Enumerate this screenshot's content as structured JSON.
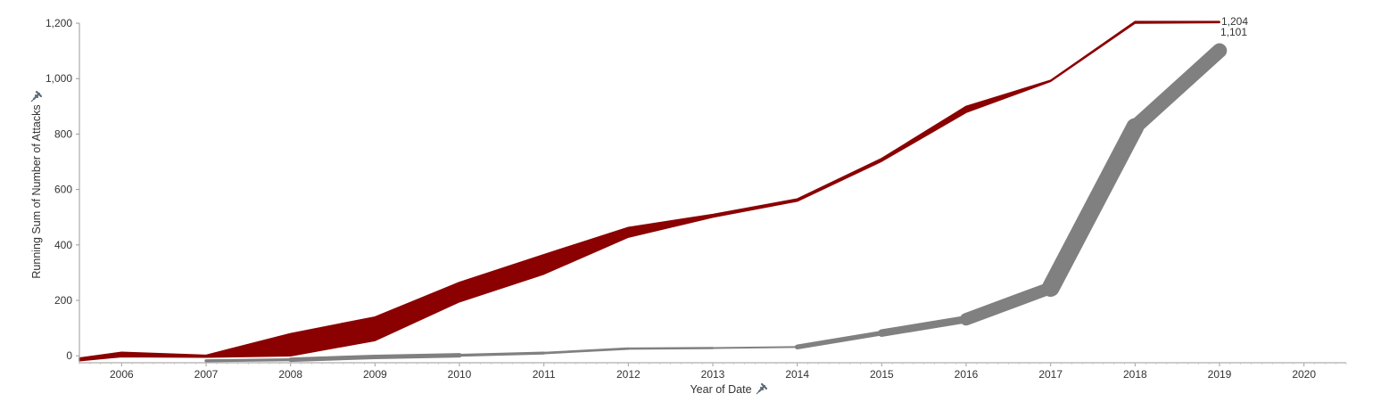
{
  "chart_data": {
    "type": "line",
    "title": "",
    "xlabel": "Year of Date",
    "ylabel": "Running Sum of Number of Attacks",
    "x_ticks": [
      "2006",
      "2007",
      "2008",
      "2009",
      "2010",
      "2011",
      "2012",
      "2013",
      "2014",
      "2015",
      "2016",
      "2017",
      "2018",
      "2019",
      "2020"
    ],
    "y_ticks": [
      0,
      200,
      400,
      600,
      800,
      1000,
      1200
    ],
    "y_tick_labels": [
      "0",
      "200",
      "400",
      "600",
      "800",
      "1,000",
      "1,200"
    ],
    "xlim": [
      2005.5,
      2020.5
    ],
    "ylim": [
      -25,
      1245
    ],
    "grid": false,
    "line_width_encodes": "number of attacks in year",
    "series": [
      {
        "color": "#8b0000",
        "x": [
          2005.5,
          2006,
          2007,
          2008,
          2009,
          2010,
          2011,
          2012,
          2013,
          2014,
          2015,
          2016,
          2017,
          2018,
          2019
        ],
        "y_top": [
          -8,
          13,
          2,
          80,
          140,
          265,
          365,
          463,
          510,
          566,
          712,
          900,
          994,
          1206,
          1206
        ],
        "y_bottom": [
          -18,
          -3,
          -5,
          0,
          55,
          195,
          295,
          428,
          500,
          558,
          702,
          878,
          990,
          1200,
          1202
        ],
        "end_label": "1,204"
      },
      {
        "color": "#808080",
        "x": [
          2007,
          2008,
          2009,
          2010,
          2011,
          2012,
          2013,
          2014,
          2015,
          2016,
          2017,
          2018,
          2019
        ],
        "y": [
          -18,
          -14,
          -4,
          2,
          10,
          26,
          28,
          32,
          82,
          132,
          245,
          825,
          1101
        ],
        "widths_px": [
          2.5,
          4,
          6,
          4,
          2.5,
          3,
          2,
          2,
          9,
          8,
          20,
          20,
          13
        ],
        "end_label": "1,101"
      }
    ]
  }
}
